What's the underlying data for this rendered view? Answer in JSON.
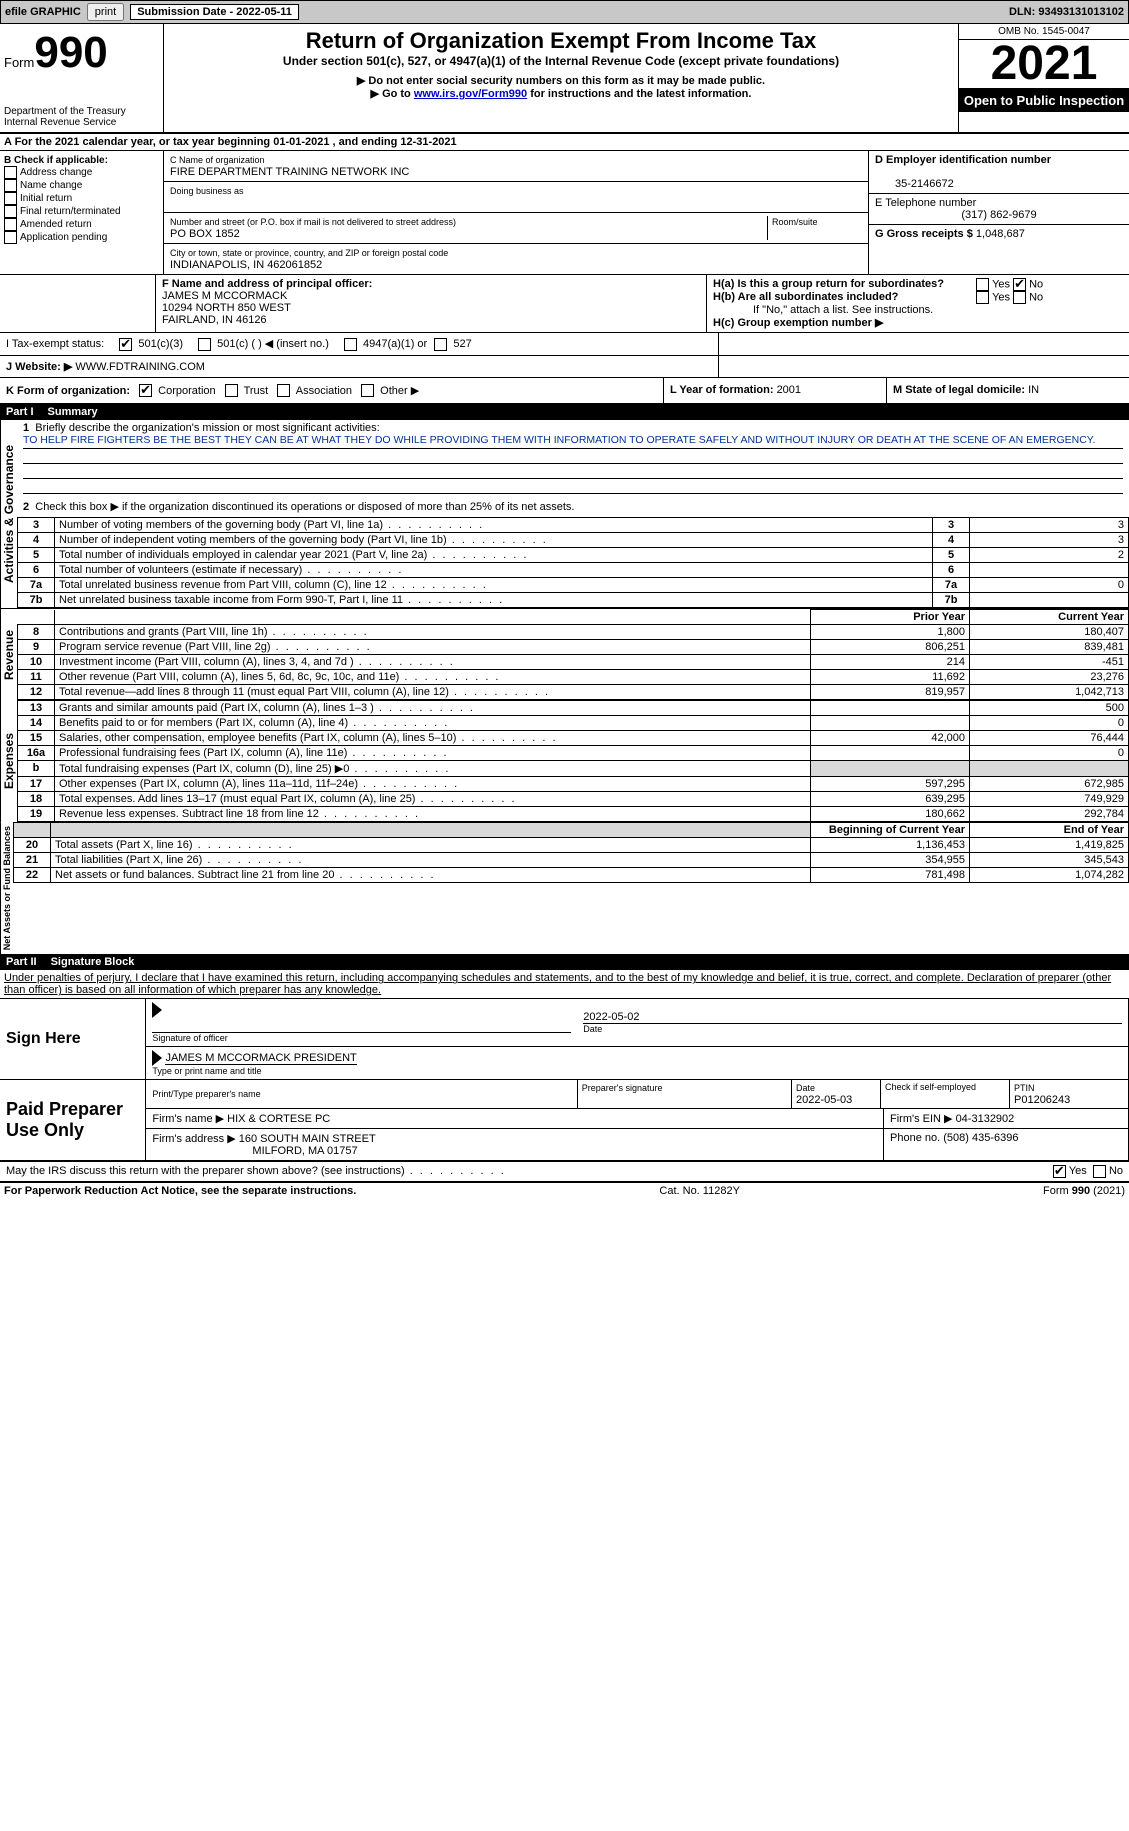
{
  "topbar": {
    "efile": "efile GRAPHIC",
    "print": "print",
    "submission_label": "Submission Date - ",
    "submission_date": "2022-05-11",
    "dln_label": "DLN: ",
    "dln": "93493131013102"
  },
  "header": {
    "form_word": "Form",
    "form_no": "990",
    "dept": "Department of the Treasury",
    "irs": "Internal Revenue Service",
    "title": "Return of Organization Exempt From Income Tax",
    "subtitle": "Under section 501(c), 527, or 4947(a)(1) of the Internal Revenue Code (except private foundations)",
    "note1": "Do not enter social security numbers on this form as it may be made public.",
    "note2_pre": "Go to ",
    "note2_link": "www.irs.gov/Form990",
    "note2_post": " for instructions and the latest information.",
    "omb": "OMB No. 1545-0047",
    "year": "2021",
    "open": "Open to Public Inspection"
  },
  "period": {
    "text_a": "A For the 2021 calendar year, or tax year beginning ",
    "begin": "01-01-2021",
    "mid": "  , and ending ",
    "end": "12-31-2021"
  },
  "boxB": {
    "heading": "B Check if applicable:",
    "items": [
      "Address change",
      "Name change",
      "Initial return",
      "Final return/terminated",
      "Amended return",
      "Application pending"
    ]
  },
  "boxC": {
    "name_lbl": "C Name of organization",
    "name": "FIRE DEPARTMENT TRAINING NETWORK INC",
    "dba_lbl": "Doing business as",
    "dba": "",
    "addr_lbl": "Number and street (or P.O. box if mail is not delivered to street address)",
    "room_lbl": "Room/suite",
    "addr": "PO BOX 1852",
    "city_lbl": "City or town, state or province, country, and ZIP or foreign postal code",
    "city": "INDIANAPOLIS, IN  462061852"
  },
  "boxD": {
    "lbl": "D Employer identification number",
    "val": "35-2146672"
  },
  "boxE": {
    "lbl": "E Telephone number",
    "val": "(317) 862-9679"
  },
  "boxG": {
    "lbl": "G Gross receipts $ ",
    "val": "1,048,687"
  },
  "boxF": {
    "lbl": "F Name and address of principal officer:",
    "name": "JAMES M MCCORMACK",
    "addr1": "10294 NORTH 850 WEST",
    "addr2": "FAIRLAND, IN  46126"
  },
  "boxH": {
    "a": "H(a)  Is this a group return for subordinates?",
    "b": "H(b)  Are all subordinates included?",
    "b_note": "If \"No,\" attach a list. See instructions.",
    "c": "H(c)  Group exemption number ▶",
    "yes": "Yes",
    "no": "No"
  },
  "boxI": {
    "lbl": "I   Tax-exempt status:",
    "o1": "501(c)(3)",
    "o2": "501(c) (  ) ◀ (insert no.)",
    "o3": "4947(a)(1) or",
    "o4": "527"
  },
  "boxJ": {
    "lbl": "J   Website: ▶",
    "val": " WWW.FDTRAINING.COM"
  },
  "boxK": {
    "lbl": "K Form of organization:",
    "o": [
      "Corporation",
      "Trust",
      "Association",
      "Other ▶"
    ]
  },
  "boxL": {
    "lbl": "L Year of formation: ",
    "val": "2001"
  },
  "boxM": {
    "lbl": "M State of legal domicile: ",
    "val": "IN"
  },
  "part1": {
    "title": "Part I",
    "name": "Summary",
    "q1": "Briefly describe the organization's mission or most significant activities:",
    "mission": "TO HELP FIRE FIGHTERS BE THE BEST THEY CAN BE AT WHAT THEY DO WHILE PROVIDING THEM WITH INFORMATION TO OPERATE SAFELY AND WITHOUT INJURY OR DEATH AT THE SCENE OF AN EMERGENCY.",
    "q2": "Check this box ▶        if the organization discontinued its operations or disposed of more than 25% of its net assets.",
    "vlabel_ag": "Activities & Governance",
    "vlabel_rev": "Revenue",
    "vlabel_exp": "Expenses",
    "vlabel_na": "Net Assets or Fund Balances",
    "lines_ag": [
      {
        "n": "3",
        "t": "Number of voting members of the governing body (Part VI, line 1a)",
        "v": "3"
      },
      {
        "n": "4",
        "t": "Number of independent voting members of the governing body (Part VI, line 1b)",
        "v": "3"
      },
      {
        "n": "5",
        "t": "Total number of individuals employed in calendar year 2021 (Part V, line 2a)",
        "v": "2"
      },
      {
        "n": "6",
        "t": "Total number of volunteers (estimate if necessary)",
        "v": ""
      },
      {
        "n": "7a",
        "t": "Total unrelated business revenue from Part VIII, column (C), line 12",
        "v": "0"
      },
      {
        "n": "7b",
        "t": "Net unrelated business taxable income from Form 990-T, Part I, line 11",
        "v": ""
      }
    ],
    "col_prior": "Prior Year",
    "col_curr": "Current Year",
    "lines_rev": [
      {
        "n": "8",
        "t": "Contributions and grants (Part VIII, line 1h)",
        "p": "1,800",
        "c": "180,407"
      },
      {
        "n": "9",
        "t": "Program service revenue (Part VIII, line 2g)",
        "p": "806,251",
        "c": "839,481"
      },
      {
        "n": "10",
        "t": "Investment income (Part VIII, column (A), lines 3, 4, and 7d )",
        "p": "214",
        "c": "-451"
      },
      {
        "n": "11",
        "t": "Other revenue (Part VIII, column (A), lines 5, 6d, 8c, 9c, 10c, and 11e)",
        "p": "11,692",
        "c": "23,276"
      },
      {
        "n": "12",
        "t": "Total revenue—add lines 8 through 11 (must equal Part VIII, column (A), line 12)",
        "p": "819,957",
        "c": "1,042,713"
      }
    ],
    "lines_exp": [
      {
        "n": "13",
        "t": "Grants and similar amounts paid (Part IX, column (A), lines 1–3 )",
        "p": "",
        "c": "500"
      },
      {
        "n": "14",
        "t": "Benefits paid to or for members (Part IX, column (A), line 4)",
        "p": "",
        "c": "0"
      },
      {
        "n": "15",
        "t": "Salaries, other compensation, employee benefits (Part IX, column (A), lines 5–10)",
        "p": "42,000",
        "c": "76,444"
      },
      {
        "n": "16a",
        "t": "Professional fundraising fees (Part IX, column (A), line 11e)",
        "p": "",
        "c": "0"
      },
      {
        "n": "b",
        "t": "Total fundraising expenses (Part IX, column (D), line 25) ▶0",
        "p": "GRAY",
        "c": "GRAY"
      },
      {
        "n": "17",
        "t": "Other expenses (Part IX, column (A), lines 11a–11d, 11f–24e)",
        "p": "597,295",
        "c": "672,985"
      },
      {
        "n": "18",
        "t": "Total expenses. Add lines 13–17 (must equal Part IX, column (A), line 25)",
        "p": "639,295",
        "c": "749,929"
      },
      {
        "n": "19",
        "t": "Revenue less expenses. Subtract line 18 from line 12",
        "p": "180,662",
        "c": "292,784"
      }
    ],
    "col_begin": "Beginning of Current Year",
    "col_end": "End of Year",
    "lines_na": [
      {
        "n": "20",
        "t": "Total assets (Part X, line 16)",
        "p": "1,136,453",
        "c": "1,419,825"
      },
      {
        "n": "21",
        "t": "Total liabilities (Part X, line 26)",
        "p": "354,955",
        "c": "345,543"
      },
      {
        "n": "22",
        "t": "Net assets or fund balances. Subtract line 21 from line 20",
        "p": "781,498",
        "c": "1,074,282"
      }
    ]
  },
  "part2": {
    "title": "Part II",
    "name": "Signature Block",
    "decl": "Under penalties of perjury, I declare that I have examined this return, including accompanying schedules and statements, and to the best of my knowledge and belief, it is true, correct, and complete. Declaration of preparer (other than officer) is based on all information of which preparer has any knowledge.",
    "sign_here": "Sign Here",
    "sig_officer": "Signature of officer",
    "sig_date": "2022-05-02",
    "date_lbl": "Date",
    "officer_name": "JAMES M MCCORMACK  PRESIDENT",
    "officer_name_lbl": "Type or print name and title",
    "paid": "Paid Preparer Use Only",
    "pt_name_lbl": "Print/Type preparer's name",
    "pt_sig_lbl": "Preparer's signature",
    "pt_date_lbl": "Date",
    "pt_date": "2022-05-03",
    "pt_check": "Check          if self-employed",
    "ptin_lbl": "PTIN",
    "ptin": "P01206243",
    "firm_name_lbl": "Firm's name      ▶ ",
    "firm_name": "HIX & CORTESE PC",
    "firm_ein_lbl": "Firm's EIN ▶ ",
    "firm_ein": "04-3132902",
    "firm_addr_lbl": "Firm's address ▶ ",
    "firm_addr": "160 SOUTH MAIN STREET",
    "firm_city": "MILFORD, MA  01757",
    "phone_lbl": "Phone no. ",
    "phone": "(508) 435-6396",
    "discuss": "May the IRS discuss this return with the preparer shown above? (see instructions)"
  },
  "footer": {
    "pra": "For Paperwork Reduction Act Notice, see the separate instructions.",
    "cat": "Cat. No. 11282Y",
    "form": "Form 990 (2021)"
  }
}
